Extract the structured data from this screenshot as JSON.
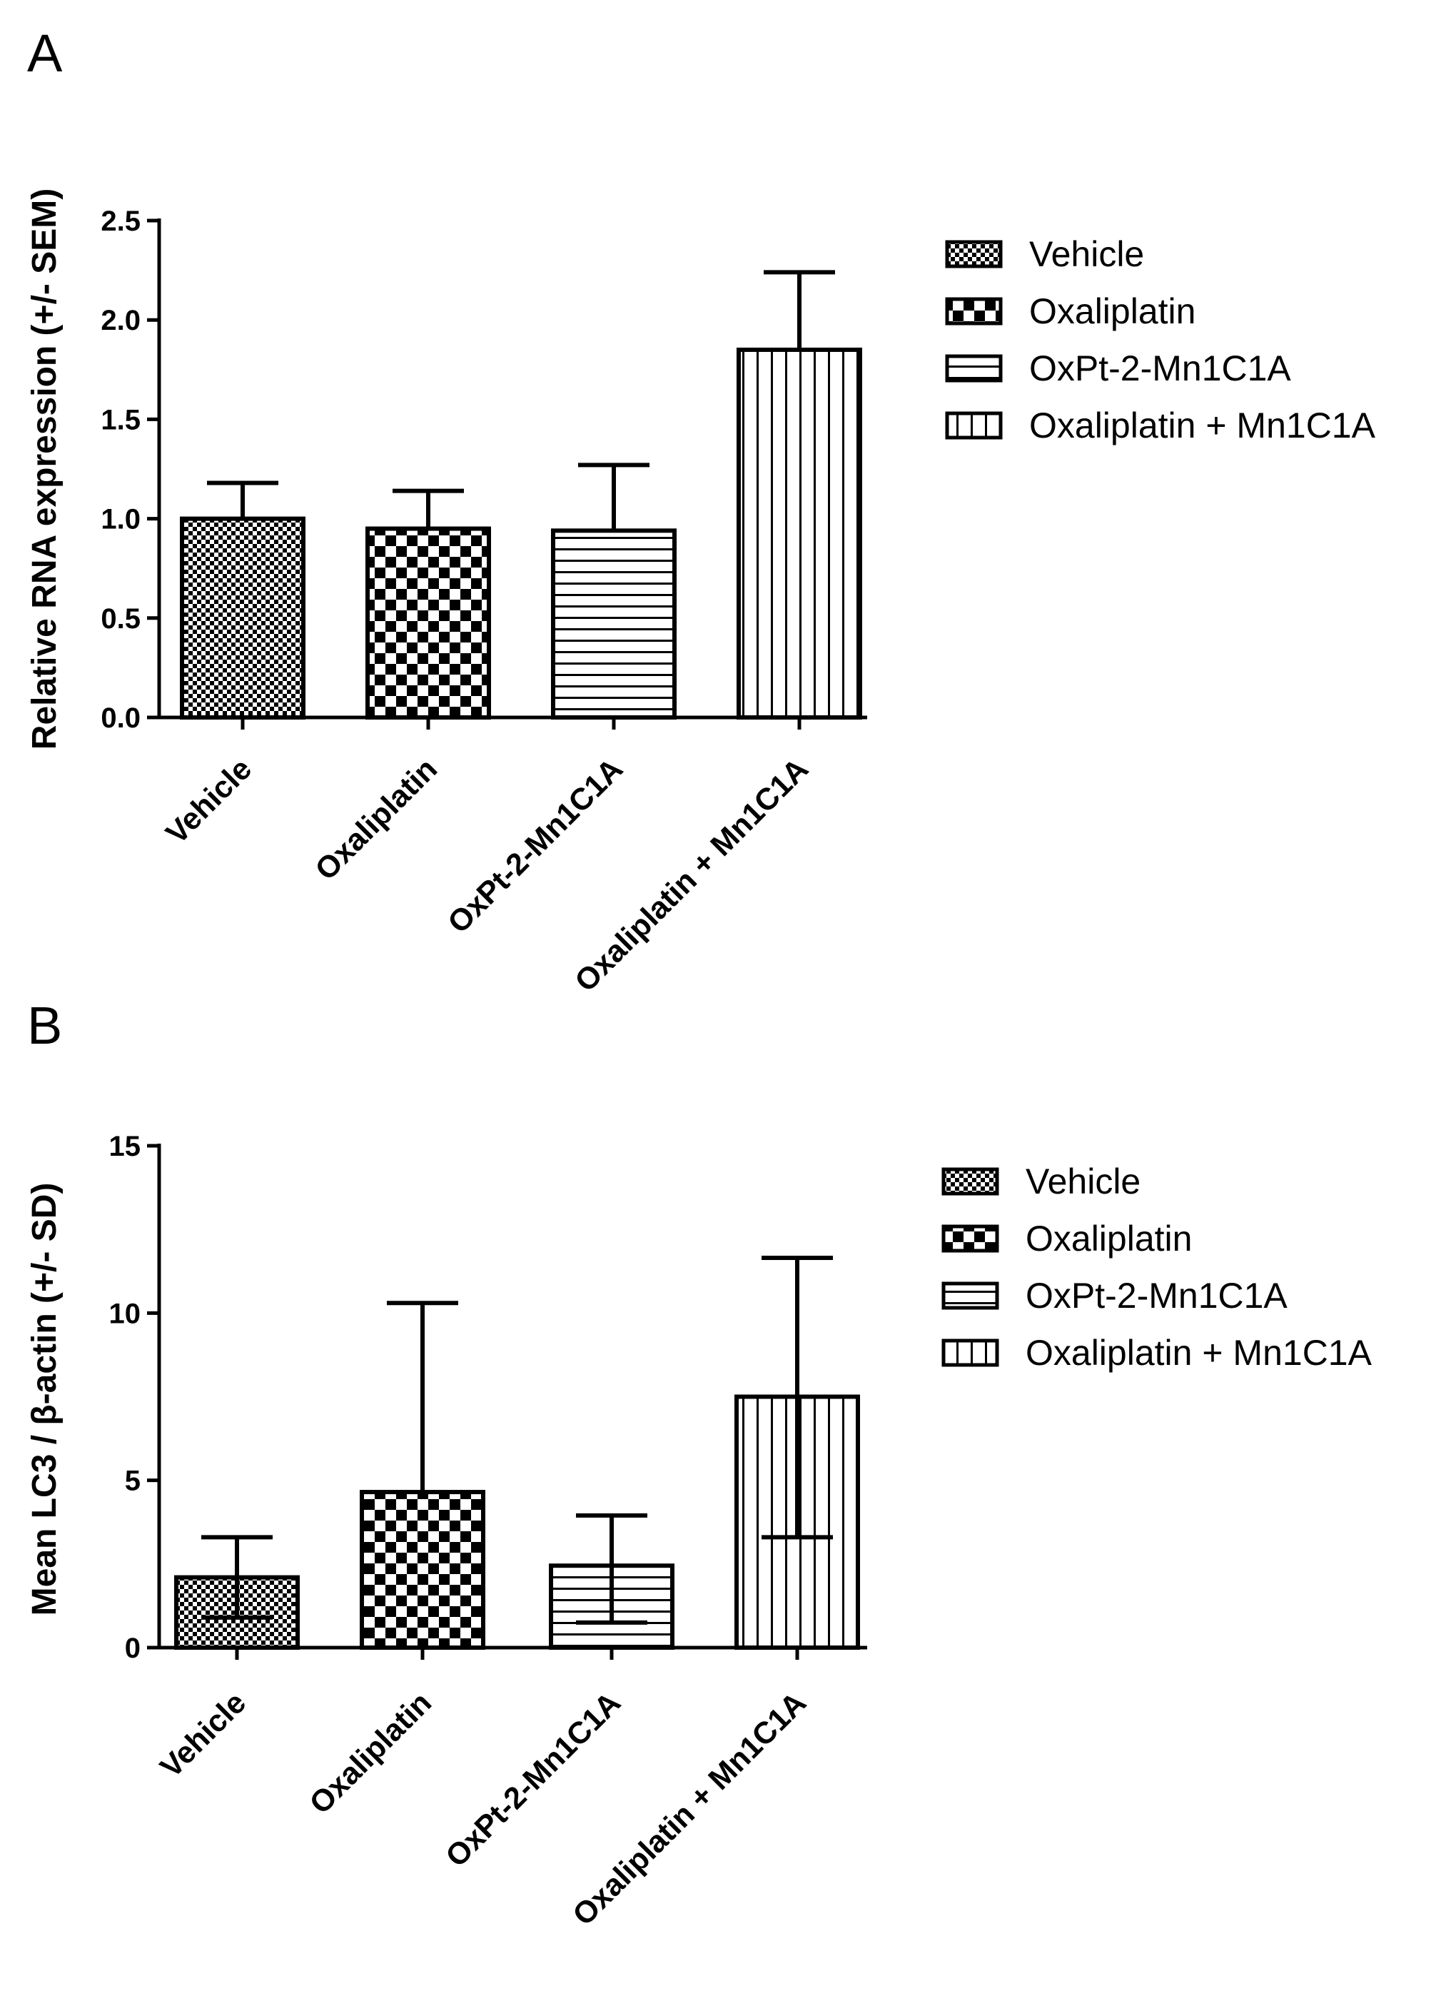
{
  "chart_data": [
    {
      "panel_label": "A",
      "type": "bar",
      "ylabel": "Relative RNA expression (+/- SEM)",
      "xlabel": "",
      "ylim": [
        0,
        2.5
      ],
      "yticks": [
        "0.0",
        "0.5",
        "1.0",
        "1.5",
        "2.0",
        "2.5"
      ],
      "ytick_values": [
        0,
        0.5,
        1.0,
        1.5,
        2.0,
        2.5
      ],
      "categories": [
        "Vehicle",
        "Oxaliplatin",
        "OxPt-2-Mn1C1A",
        "Oxaliplatin + Mn1C1A"
      ],
      "values": [
        1.0,
        0.95,
        0.94,
        1.85
      ],
      "error_upper": [
        1.18,
        1.14,
        1.27,
        2.24
      ],
      "error_lower": [
        1.0,
        0.95,
        0.94,
        1.85
      ],
      "legend": [
        "Vehicle",
        "Oxaliplatin",
        "OxPt-2-Mn1C1A",
        "Oxaliplatin + Mn1C1A"
      ],
      "legend_position": "top-right"
    },
    {
      "panel_label": "B",
      "type": "bar",
      "ylabel": "Mean LC3 / β-actin (+/- SD)",
      "xlabel": "",
      "ylim": [
        0,
        15
      ],
      "yticks": [
        "0",
        "5",
        "10",
        "15"
      ],
      "ytick_values": [
        0,
        5,
        10,
        15
      ],
      "categories": [
        "Vehicle",
        "Oxaliplatin",
        "OxPt-2-Mn1C1A",
        "Oxaliplatin + Mn1C1A"
      ],
      "values": [
        2.1,
        4.65,
        2.45,
        7.5
      ],
      "error_upper": [
        3.3,
        10.3,
        3.95,
        11.65
      ],
      "error_lower": [
        0.9,
        4.65,
        0.75,
        3.3
      ],
      "legend": [
        "Vehicle",
        "Oxaliplatin",
        "OxPt-2-Mn1C1A",
        "Oxaliplatin + Mn1C1A"
      ],
      "legend_position": "top-right"
    }
  ]
}
